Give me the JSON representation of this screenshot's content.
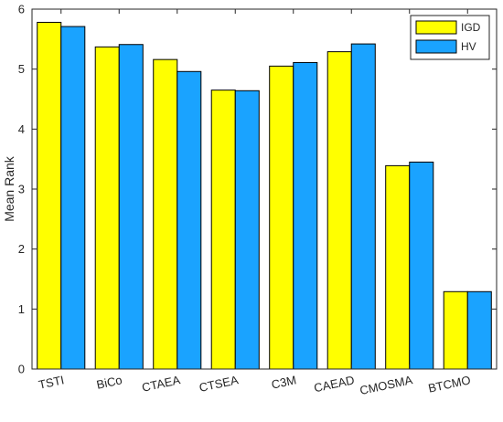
{
  "chart_data": {
    "type": "bar",
    "title": "",
    "xlabel": "",
    "ylabel": "Mean Rank",
    "ylim": [
      0,
      6
    ],
    "yticks": [
      0,
      1,
      2,
      3,
      4,
      5,
      6
    ],
    "grid": false,
    "legend_position": "top-right",
    "categories": [
      "TSTI",
      "BiCo",
      "CTAEA",
      "CTSEA",
      "C3M",
      "CAEAD",
      "CMOSMA",
      "BTCMO"
    ],
    "series": [
      {
        "name": "IGD",
        "color": "#ffff00",
        "values": [
          5.78,
          5.37,
          5.16,
          4.65,
          5.05,
          5.29,
          3.39,
          1.29
        ]
      },
      {
        "name": "HV",
        "color": "#1aa3ff",
        "values": [
          5.71,
          5.41,
          4.96,
          4.64,
          5.11,
          5.42,
          3.45,
          1.29
        ]
      }
    ]
  }
}
